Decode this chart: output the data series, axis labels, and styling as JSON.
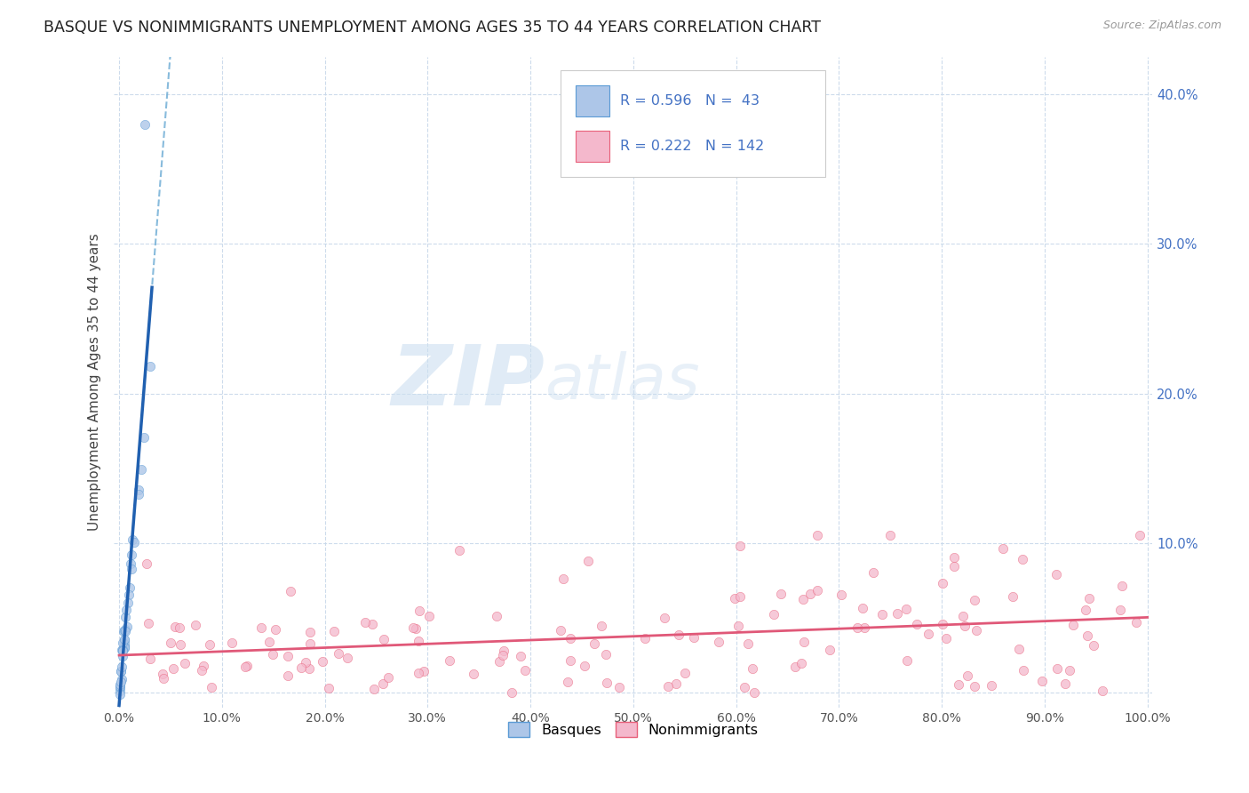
{
  "title": "BASQUE VS NONIMMIGRANTS UNEMPLOYMENT AMONG AGES 35 TO 44 YEARS CORRELATION CHART",
  "source": "Source: ZipAtlas.com",
  "ylabel": "Unemployment Among Ages 35 to 44 years",
  "xlim": [
    -0.005,
    1.005
  ],
  "ylim": [
    -0.01,
    0.425
  ],
  "xticks": [
    0.0,
    0.1,
    0.2,
    0.3,
    0.4,
    0.5,
    0.6,
    0.7,
    0.8,
    0.9,
    1.0
  ],
  "xticklabels": [
    "0.0%",
    "10.0%",
    "20.0%",
    "30.0%",
    "40.0%",
    "50.0%",
    "60.0%",
    "70.0%",
    "80.0%",
    "90.0%",
    "100.0%"
  ],
  "yticks": [
    0.0,
    0.1,
    0.2,
    0.3,
    0.4
  ],
  "yticklabels": [
    "",
    "10.0%",
    "20.0%",
    "30.0%",
    "40.0%"
  ],
  "basque_color": "#adc6e8",
  "basque_edge_color": "#5b9bd5",
  "nonimm_color": "#f4b8cc",
  "nonimm_edge_color": "#e8607a",
  "blue_line_color": "#2060b0",
  "pink_line_color": "#e05878",
  "R_basque": 0.596,
  "N_basque": 43,
  "R_nonimm": 0.222,
  "N_nonimm": 142,
  "watermark_zip": "ZIP",
  "watermark_atlas": "atlas",
  "grid_color": "#c8d8ea",
  "tick_color": "#4472c4"
}
